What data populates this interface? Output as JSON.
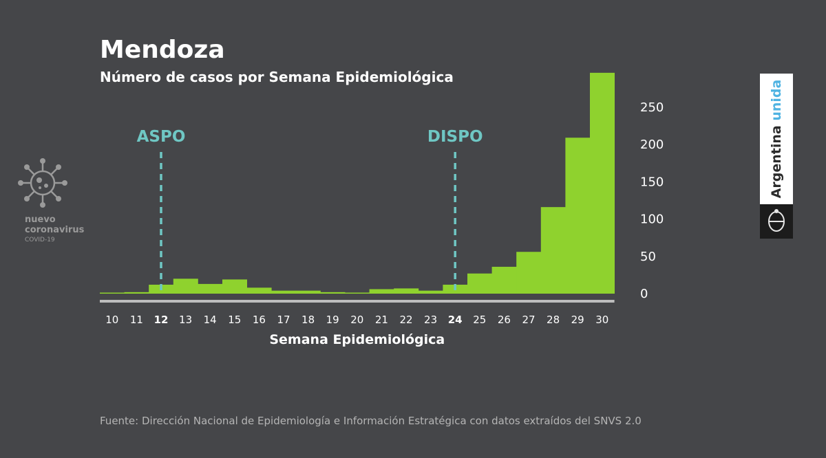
{
  "header": {
    "title": "Mendoza",
    "subtitle": "Número de casos por Semana Epidemiológica"
  },
  "footer": {
    "source": "Fuente: Dirección Nacional de Epidemiología e Información Estratégica con datos extraídos del SNVS 2.0"
  },
  "brand_left": {
    "icon": "virus-icon",
    "line1": "nuevo",
    "line2": "coronavirus",
    "line3": "COVID-19"
  },
  "brand_right": {
    "text_main": "Argentina",
    "text_accent": "unida",
    "icon": "coat-of-arms-icon"
  },
  "colors": {
    "background": "#454649",
    "bars": "#8fd22e",
    "markers": "#6fc7c4",
    "axis": "#bdbdbd",
    "text": "#ffffff"
  },
  "chart_data": {
    "type": "bar",
    "title": "Mendoza",
    "subtitle": "Número de casos por Semana Epidemiológica",
    "xlabel": "Semana Epidemiológica",
    "ylabel": "",
    "categories": [
      "10",
      "11",
      "12",
      "13",
      "14",
      "15",
      "16",
      "17",
      "18",
      "19",
      "20",
      "21",
      "22",
      "23",
      "24",
      "25",
      "26",
      "27",
      "28",
      "29",
      "30"
    ],
    "highlighted_categories": [
      "12",
      "24"
    ],
    "values": [
      1,
      2,
      12,
      20,
      13,
      19,
      8,
      4,
      4,
      2,
      1,
      6,
      7,
      4,
      12,
      27,
      36,
      56,
      116,
      209,
      296
    ],
    "yticks": [
      0,
      50,
      100,
      150,
      200,
      250
    ],
    "ylim": [
      0,
      300
    ],
    "y_axis_side": "right",
    "annotations": [
      {
        "label": "ASPO",
        "at_category": "12"
      },
      {
        "label": "DISPO",
        "at_category": "24"
      }
    ]
  }
}
